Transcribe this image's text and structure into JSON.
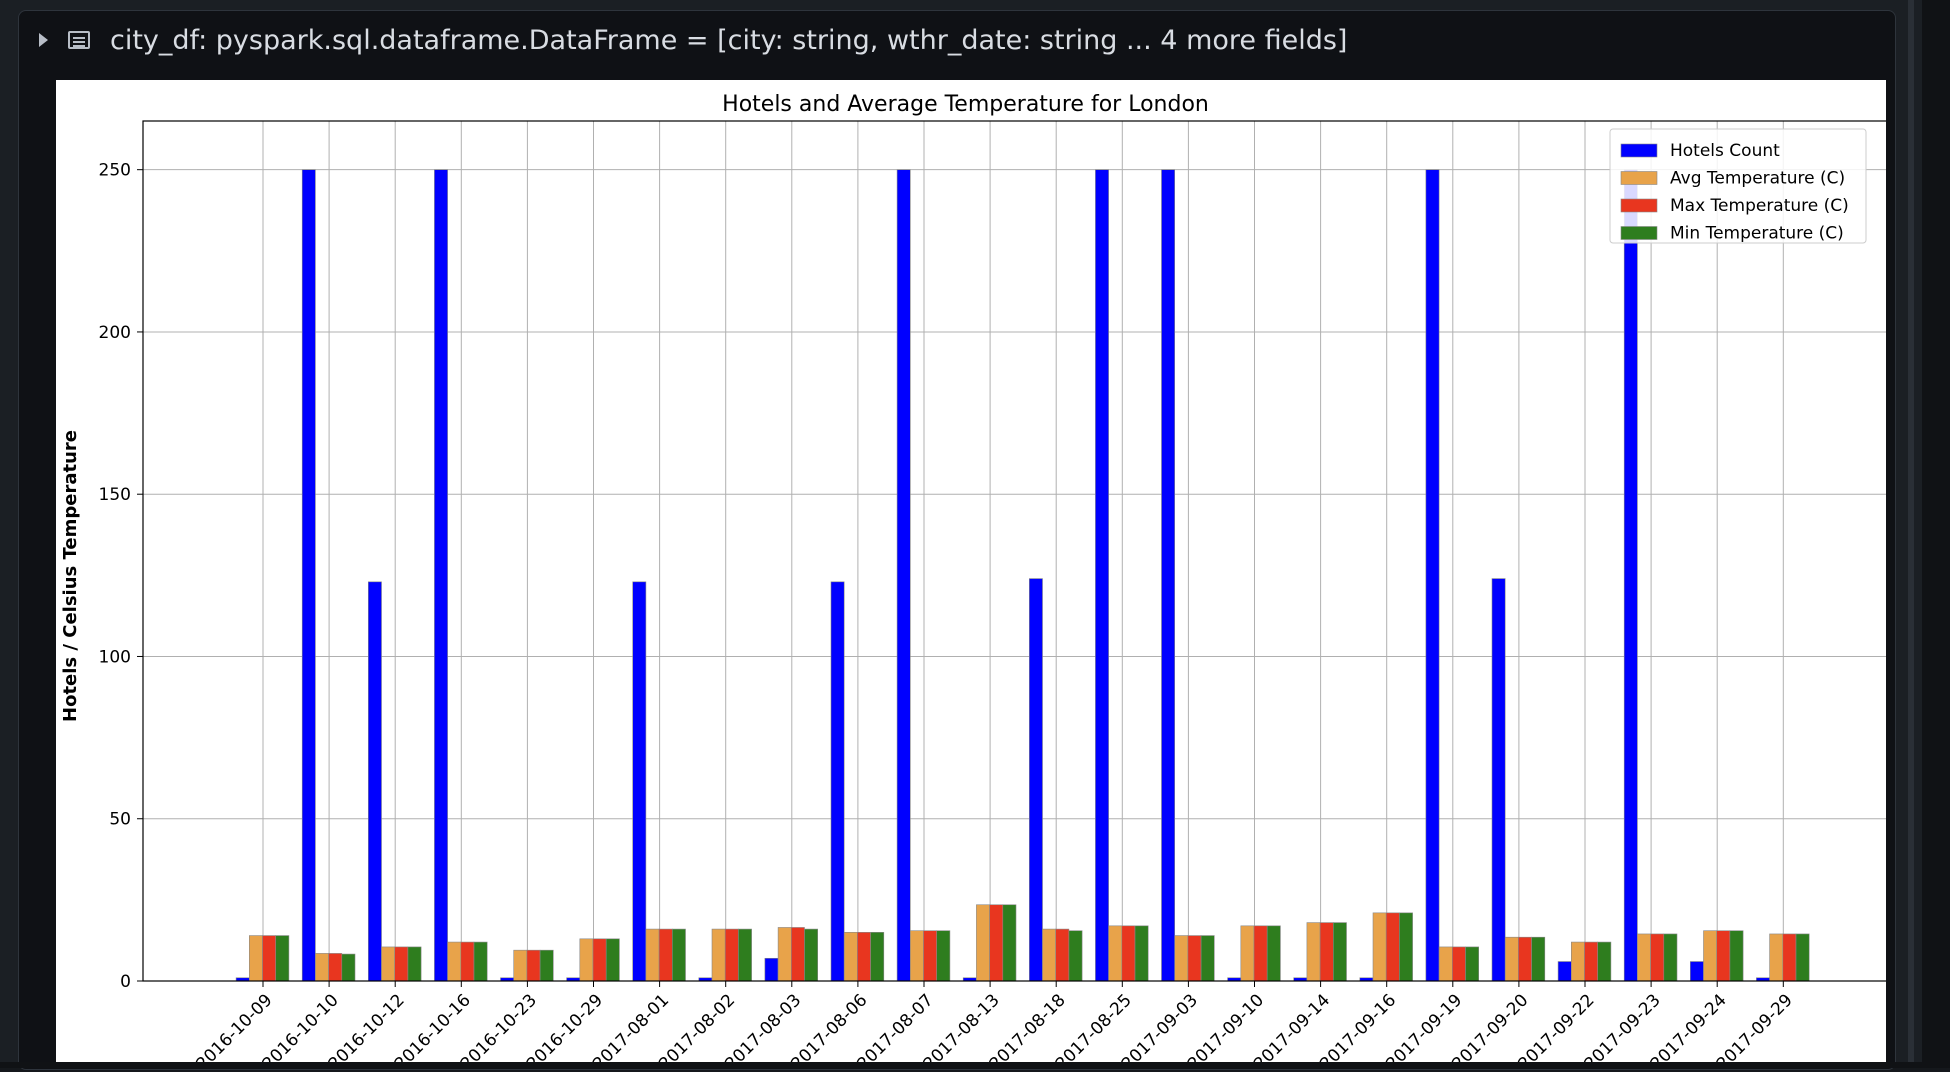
{
  "cell": {
    "variable_name": "city_df:",
    "variable_type": "pyspark.sql.dataframe.DataFrame = [city: string, wthr_date: string ... 4 more fields]"
  },
  "chart_data": {
    "type": "bar",
    "title": "Hotels and Average Temperature for London",
    "xlabel": "",
    "ylabel": "Hotels / Celsius Temperature",
    "ylim": [
      0,
      265
    ],
    "yticks": [
      0,
      50,
      100,
      150,
      200,
      250
    ],
    "grid": true,
    "legend_position": "top-right",
    "categories": [
      "2016-10-09",
      "2016-10-10",
      "2016-10-12",
      "2016-10-16",
      "2016-10-23",
      "2016-10-29",
      "2017-08-01",
      "2017-08-02",
      "2017-08-03",
      "2017-08-06",
      "2017-08-07",
      "2017-08-13",
      "2017-08-18",
      "2017-08-25",
      "2017-09-03",
      "2017-09-10",
      "2017-09-14",
      "2017-09-16",
      "2017-09-19",
      "2017-09-20",
      "2017-09-22",
      "2017-09-23",
      "2017-09-24",
      "2017-09-29"
    ],
    "series": [
      {
        "name": "Hotels Count",
        "color": "#0000ff",
        "values": [
          1,
          250,
          123,
          250,
          1,
          1,
          123,
          1,
          7,
          123,
          250,
          1,
          124,
          250,
          250,
          1,
          1,
          1,
          250,
          124,
          6,
          250,
          6,
          1
        ]
      },
      {
        "name": "Avg Temperature (C)",
        "color": "#e8a34a",
        "values": [
          14,
          8.5,
          10.5,
          12,
          9.5,
          13,
          16,
          16,
          16.5,
          15,
          15.5,
          23.5,
          16,
          17,
          14,
          17,
          18,
          21,
          10.5,
          13.5,
          12,
          14.5,
          15.5,
          14.5
        ]
      },
      {
        "name": "Max Temperature (C)",
        "color": "#e8361f",
        "values": [
          14,
          8.5,
          10.5,
          12,
          9.5,
          13,
          16,
          16,
          16.5,
          15,
          15.5,
          23.5,
          16,
          17,
          14,
          17,
          18,
          21,
          10.5,
          13.5,
          12,
          14.5,
          15.5,
          14.5
        ]
      },
      {
        "name": "Min Temperature (C)",
        "color": "#2e7d1e",
        "values": [
          14,
          8.3,
          10.5,
          12,
          9.5,
          13,
          16,
          16,
          16,
          15,
          15.5,
          23.5,
          15.5,
          17,
          14,
          17,
          18,
          21,
          10.5,
          13.5,
          12,
          14.5,
          15.5,
          14.5
        ]
      }
    ]
  }
}
